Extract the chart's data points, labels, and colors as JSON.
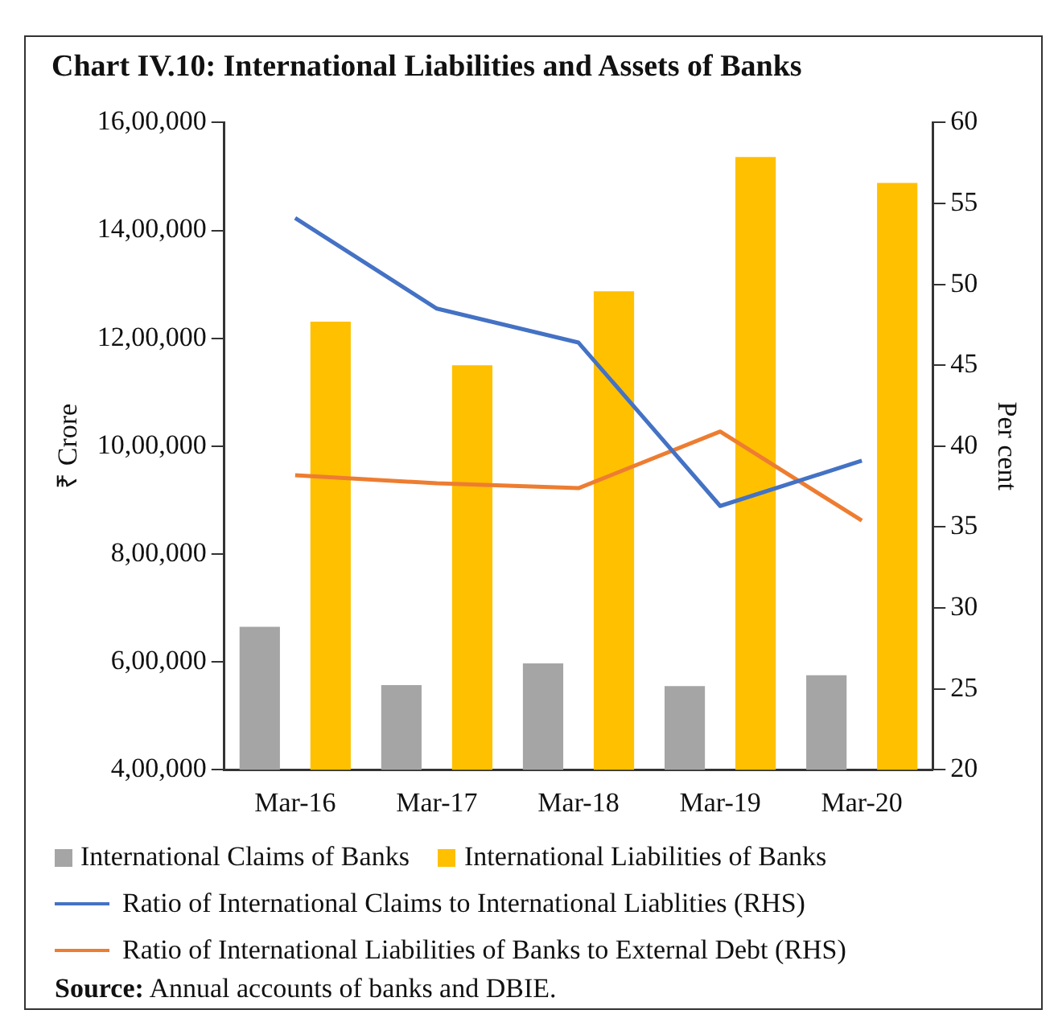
{
  "chart_data": {
    "type": "bar",
    "title": "Chart IV.10: International Liabilities and Assets of Banks",
    "ylabel": "₹ Crore",
    "y2label": "Per cent",
    "categories": [
      "Mar-16",
      "Mar-17",
      "Mar-18",
      "Mar-19",
      "Mar-20"
    ],
    "series": [
      {
        "name": "International Claims of Banks",
        "color": "#a5a5a5",
        "values": [
          665000,
          557000,
          597000,
          555000,
          575000
        ]
      },
      {
        "name": "International Liabilities of Banks",
        "color": "#ffc000",
        "values": [
          1231000,
          1150000,
          1287000,
          1536000,
          1488000
        ]
      },
      {
        "name": "Ratio of International Claims to International Liablities (RHS)",
        "type": "line",
        "axis": "y2",
        "color": "#4472c4",
        "values": [
          54.1,
          48.5,
          46.4,
          36.3,
          39.1
        ]
      },
      {
        "name": "Ratio of International Liabilities of Banks to External Debt (RHS)",
        "type": "line",
        "axis": "y2",
        "color": "#ed7d31",
        "values": [
          38.2,
          37.7,
          37.4,
          40.9,
          35.4
        ]
      }
    ],
    "ylim": [
      400000,
      1600000
    ],
    "yticks": [
      {
        "value": 400000,
        "label": "4,00,000"
      },
      {
        "value": 600000,
        "label": "6,00,000"
      },
      {
        "value": 800000,
        "label": "8,00,000"
      },
      {
        "value": 1000000,
        "label": "10,00,000"
      },
      {
        "value": 1200000,
        "label": "12,00,000"
      },
      {
        "value": 1400000,
        "label": "14,00,000"
      },
      {
        "value": 1600000,
        "label": "16,00,000"
      }
    ],
    "y2lim": [
      20,
      60
    ],
    "y2ticks": [
      20,
      25,
      30,
      35,
      40,
      45,
      50,
      55,
      60
    ],
    "grid": false,
    "legend": "bottom",
    "marker": "none",
    "annotations": [
      "Source: Annual accounts of banks and DBIE."
    ]
  }
}
